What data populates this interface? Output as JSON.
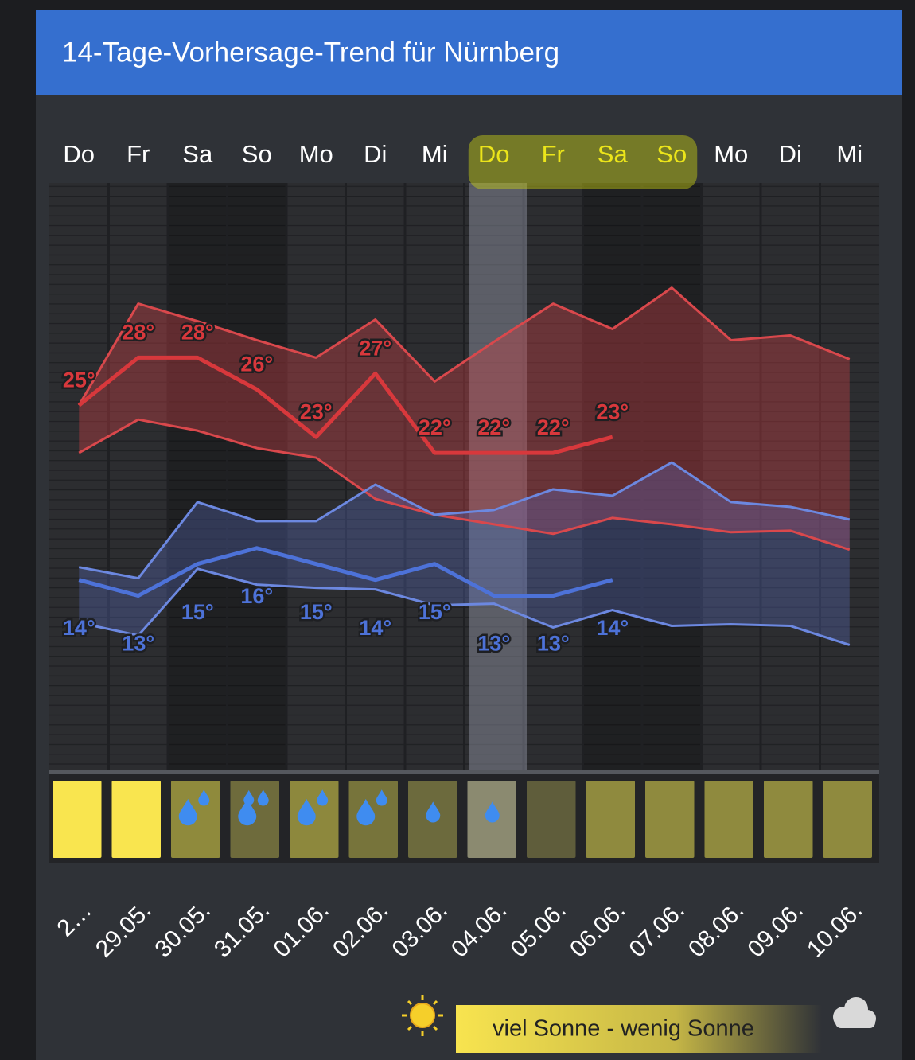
{
  "chart_data": {
    "type": "line",
    "title": "14-Tage-Vorhersage-Trend für Nürnberg",
    "categories": [
      "Do",
      "Fr",
      "Sa",
      "So",
      "Mo",
      "Di",
      "Mi",
      "Do",
      "Fr",
      "Sa",
      "So",
      "Mo",
      "Di",
      "Mi"
    ],
    "dates": [
      "2…",
      "29.05.",
      "30.05.",
      "31.05.",
      "01.06.",
      "02.06.",
      "03.06.",
      "04.06.",
      "05.06.",
      "06.06.",
      "07.06.",
      "08.06.",
      "09.06.",
      "10.06."
    ],
    "ylim": [
      2,
      39
    ],
    "temp_max": {
      "color": "#d8383c",
      "values": [
        25,
        28,
        28,
        26,
        23,
        27,
        22,
        22,
        22,
        23,
        null,
        null,
        null,
        null
      ],
      "value_labels": [
        "25°",
        "28°",
        "28°",
        "26°",
        "23°",
        "27°",
        "22°",
        "22°",
        "22°",
        "23°",
        null,
        null,
        null,
        null
      ]
    },
    "temp_max_upper": {
      "color": "#d9484c",
      "values": [
        25,
        31.4,
        30.3,
        29.1,
        28,
        30.4,
        26.5,
        29,
        31.4,
        29.8,
        32.4,
        29.1,
        29.4,
        27.9
      ]
    },
    "temp_max_lower": {
      "color": "#d9484c",
      "values": [
        22,
        24.1,
        23.4,
        22.3,
        21.7,
        19.1,
        18.1,
        17.5,
        16.9,
        17.9,
        17.5,
        17,
        17.1,
        15.9
      ]
    },
    "temp_min": {
      "color": "#4d72d8",
      "values": [
        14,
        13,
        15,
        16,
        15,
        14,
        15,
        13,
        13,
        14,
        null,
        null,
        null,
        null
      ],
      "value_labels": [
        "14°",
        "13°",
        "15°",
        "16°",
        "15°",
        "14°",
        "15°",
        "13°",
        "13°",
        "14°",
        null,
        null,
        null,
        null
      ]
    },
    "temp_min_upper": {
      "color": "#6c88e0",
      "values": [
        14.8,
        14.1,
        18.9,
        17.7,
        17.7,
        20,
        18.1,
        18.4,
        19.7,
        19.3,
        21.4,
        18.9,
        18.6,
        17.8
      ]
    },
    "temp_min_lower": {
      "color": "#6c88e0",
      "values": [
        11.3,
        10.5,
        14.7,
        13.7,
        13.5,
        13.4,
        12.4,
        12.5,
        11,
        12.1,
        11.1,
        11.2,
        11.1,
        9.9
      ]
    },
    "sun_colors": [
      "#f9e54f",
      "#f9e54f",
      "#8f8a3c",
      "#6e6b3c",
      "#8d883d",
      "#77743b",
      "#6c6a3d",
      "#8b8a70",
      "#5f5d3b",
      "#8f8a3e",
      "#8f8a3e",
      "#8f8a3e",
      "#8f8a3e",
      "#8f8a3e"
    ],
    "rain_drops": [
      0,
      0,
      2,
      3,
      2,
      2,
      1,
      1,
      0,
      0,
      0,
      0,
      0,
      0
    ],
    "weekend_days": [
      2,
      3,
      9,
      10
    ],
    "current_day": 7,
    "highlighted_days": [
      7,
      8,
      9,
      10
    ],
    "legend": "viel Sonne - wenig Sonne"
  }
}
